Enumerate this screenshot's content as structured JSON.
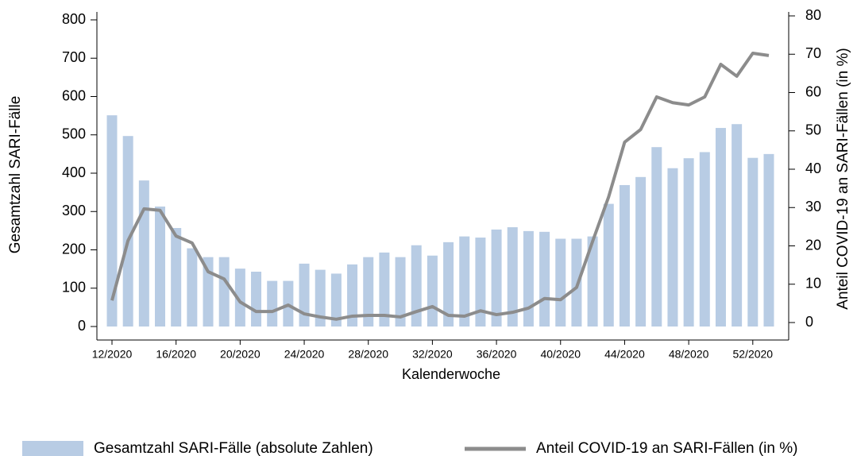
{
  "chart_data": {
    "type": "bar",
    "xlabel": "Kalenderwoche",
    "ylabel": "Gesamtzahl SARI-Fälle",
    "y2label": "Anteil COVID-19 an SARI-Fällen (in %)",
    "categories": [
      "12/2020",
      null,
      null,
      null,
      "16/2020",
      null,
      null,
      null,
      "20/2020",
      null,
      null,
      null,
      "24/2020",
      null,
      null,
      null,
      "28/2020",
      null,
      null,
      null,
      "32/2020",
      null,
      null,
      null,
      "36/2020",
      null,
      null,
      null,
      "40/2020",
      null,
      null,
      null,
      "44/2020",
      null,
      null,
      null,
      "48/2020",
      null,
      null,
      null,
      "52/2020",
      null
    ],
    "series": [
      {
        "name": "Gesamtzahl SARI-Fälle (absolute Zahlen)",
        "type": "bar",
        "color": "#b8cce4",
        "values": [
          551,
          497,
          381,
          313,
          257,
          204,
          181,
          181,
          151,
          143,
          119,
          119,
          164,
          148,
          138,
          162,
          181,
          193,
          181,
          212,
          185,
          220,
          235,
          232,
          253,
          259,
          249,
          247,
          229,
          229,
          235,
          320,
          369,
          390,
          468,
          413,
          439,
          455,
          518,
          528,
          440,
          450
        ]
      },
      {
        "name": "Anteil COVID-19 an SARI-Fällen (in %)",
        "type": "line",
        "axis": "y2",
        "color": "#8c8c8c",
        "values": [
          6.8,
          22.4,
          30.7,
          30.3,
          23.6,
          21.8,
          14.3,
          12.4,
          6.4,
          3.9,
          3.9,
          5.6,
          3.3,
          2.5,
          1.9,
          2.7,
          2.9,
          2.9,
          2.5,
          3.9,
          5.2,
          2.9,
          2.7,
          4.1,
          3.1,
          3.7,
          4.8,
          7.3,
          7.0,
          10.2,
          22.2,
          33.8,
          48.1,
          51.4,
          59.9,
          58.4,
          57.8,
          59.9,
          68.4,
          65.3,
          71.3,
          70.7
        ]
      }
    ],
    "ylim": [
      0,
      800
    ],
    "yticks": [
      0,
      100,
      200,
      300,
      400,
      500,
      600,
      700,
      800
    ],
    "y2lim": [
      0,
      80
    ],
    "y2ticks": [
      0,
      10,
      20,
      30,
      40,
      50,
      60,
      70,
      80
    ]
  }
}
